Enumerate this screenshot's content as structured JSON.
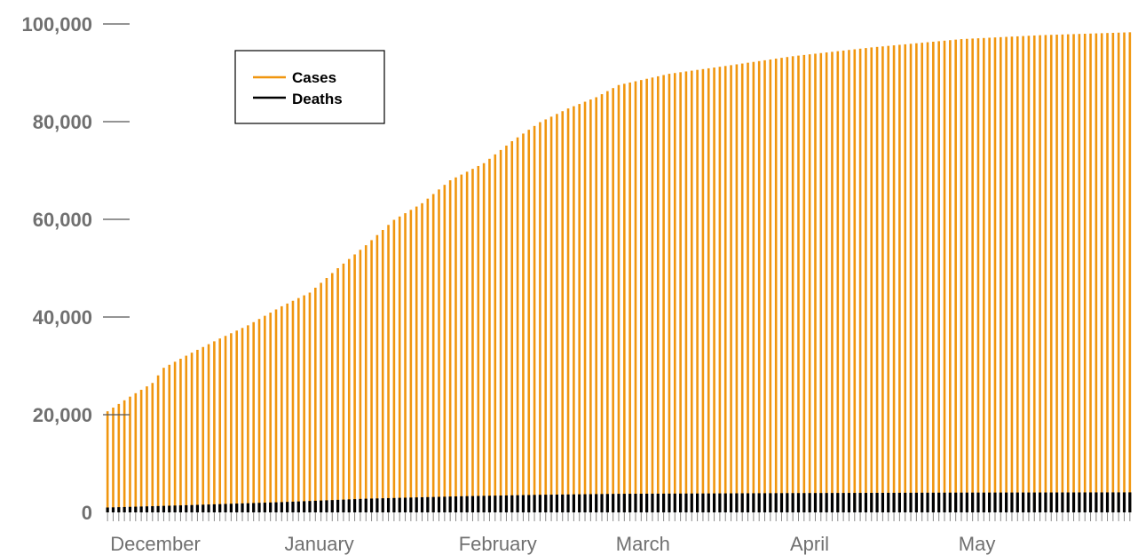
{
  "chart_data": {
    "type": "bar",
    "x_axis": {
      "type": "date",
      "start": "2020-11-30",
      "end": "2021-05-31",
      "month_labels": [
        "December",
        "January",
        "February",
        "March",
        "April",
        "May"
      ],
      "month_starts": [
        "2020-12-01",
        "2021-01-01",
        "2021-02-01",
        "2021-03-01",
        "2021-04-01",
        "2021-05-01"
      ]
    },
    "y_axis": {
      "ylim": [
        0,
        100000
      ],
      "ticks": [
        0,
        20000,
        40000,
        60000,
        80000,
        100000
      ],
      "tick_labels": [
        "0",
        "20,000",
        "40,000",
        "60,000",
        "80,000",
        "100,000"
      ],
      "grid": false
    },
    "legend": {
      "placement": "top-left"
    },
    "series": [
      {
        "name": "Cases",
        "color": "#F0960F",
        "points": [
          [
            "2020-11-30",
            20700
          ],
          [
            "2020-12-04",
            23700
          ],
          [
            "2020-12-08",
            26500
          ],
          [
            "2020-12-10",
            29600
          ],
          [
            "2020-12-15",
            32700
          ],
          [
            "2020-12-20",
            35600
          ],
          [
            "2020-12-25",
            38300
          ],
          [
            "2020-12-31",
            42200
          ],
          [
            "2021-01-05",
            45000
          ],
          [
            "2021-01-10",
            50000
          ],
          [
            "2021-01-15",
            54700
          ],
          [
            "2021-01-20",
            59900
          ],
          [
            "2021-01-25",
            63300
          ],
          [
            "2021-01-30",
            68000
          ],
          [
            "2021-02-05",
            71500
          ],
          [
            "2021-02-10",
            76000
          ],
          [
            "2021-02-15",
            79900
          ],
          [
            "2021-02-20",
            82700
          ],
          [
            "2021-02-25",
            85000
          ],
          [
            "2021-03-01",
            87500
          ],
          [
            "2021-03-10",
            89800
          ],
          [
            "2021-03-20",
            91400
          ],
          [
            "2021-04-01",
            93400
          ],
          [
            "2021-04-15",
            95200
          ],
          [
            "2021-05-01",
            96900
          ],
          [
            "2021-05-15",
            97700
          ],
          [
            "2021-05-31",
            98300
          ]
        ]
      },
      {
        "name": "Deaths",
        "color": "#000000",
        "points": [
          [
            "2020-11-30",
            1000
          ],
          [
            "2020-12-15",
            1500
          ],
          [
            "2020-12-31",
            2100
          ],
          [
            "2021-01-15",
            2800
          ],
          [
            "2021-02-01",
            3300
          ],
          [
            "2021-02-15",
            3600
          ],
          [
            "2021-03-01",
            3800
          ],
          [
            "2021-04-01",
            3950
          ],
          [
            "2021-05-01",
            4050
          ],
          [
            "2021-05-31",
            4100
          ]
        ]
      }
    ]
  }
}
